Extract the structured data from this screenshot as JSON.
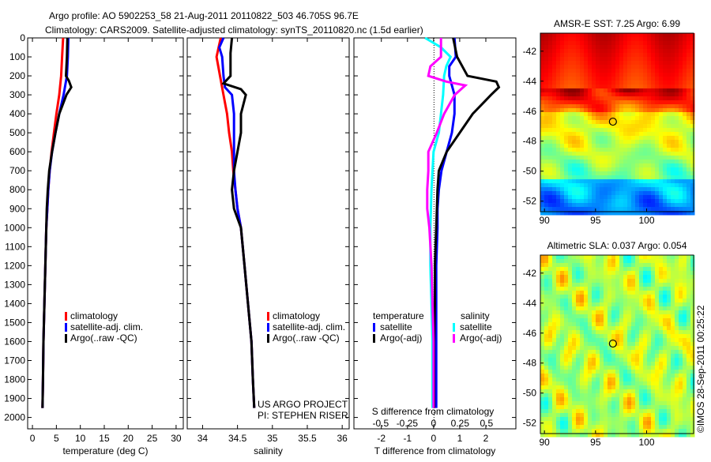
{
  "title_line1": "Argo profile: AO 5902253_58 21-Aug-2011 20110822_503 46.705S 96.7E",
  "title_line2": "Climatology: CARS2009. Satellite-adjusted climatology: synTS_20110820.nc (1.5d earlier)",
  "credit": "©IMOS 28-Sep-2011 00:25:22",
  "project_line1": "US ARGO PROJECT",
  "project_line2": "PI: STEPHEN RISER",
  "colors": {
    "climatology": "#ff0000",
    "satellite": "#0000ff",
    "argo": "#000000",
    "s_satellite": "#00ffff",
    "s_argo": "#ff00ff"
  },
  "chart_data": [
    {
      "id": "temperature",
      "type": "line",
      "xlabel": "temperature (deg C)",
      "xlim": [
        -1,
        31.5
      ],
      "xticks": [
        0,
        5,
        10,
        15,
        20,
        25,
        30
      ],
      "ylim": [
        0,
        2060
      ],
      "yticks": [
        0,
        100,
        200,
        300,
        400,
        500,
        600,
        700,
        800,
        900,
        1000,
        1100,
        1200,
        1300,
        1400,
        1500,
        1600,
        1700,
        1800,
        1900,
        2000
      ],
      "legend": [
        "climatology",
        "satellite-adj. clim.",
        "Argo(..raw -QC)"
      ],
      "series": [
        {
          "name": "climatology",
          "color": "#ff0000",
          "depth": [
            0,
            100,
            200,
            300,
            400,
            500,
            600,
            700,
            800,
            900,
            1000,
            1200,
            1400,
            1600,
            1800,
            1950
          ],
          "values": [
            6.4,
            6.2,
            6.0,
            5.6,
            5.0,
            4.5,
            4.0,
            3.6,
            3.3,
            3.1,
            2.9,
            2.7,
            2.5,
            2.3,
            2.2,
            2.1
          ]
        },
        {
          "name": "satellite-adj. clim.",
          "color": "#0000ff",
          "depth": [
            0,
            100,
            200,
            300,
            400,
            500,
            600,
            700,
            800,
            900,
            1000,
            1200,
            1400,
            1600,
            1800,
            1950
          ],
          "values": [
            7.5,
            7.4,
            7.2,
            6.5,
            5.6,
            4.8,
            4.1,
            3.6,
            3.3,
            3.1,
            2.9,
            2.7,
            2.5,
            2.3,
            2.2,
            2.1
          ]
        },
        {
          "name": "Argo(..raw -QC)",
          "color": "#000000",
          "depth": [
            0,
            100,
            200,
            225,
            260,
            300,
            400,
            500,
            600,
            700,
            800,
            900,
            1000,
            1200,
            1400,
            1600,
            1800,
            1950
          ],
          "values": [
            7.3,
            7.2,
            7.0,
            7.6,
            8.1,
            7.1,
            5.6,
            4.8,
            4.1,
            3.5,
            3.2,
            3.0,
            2.9,
            2.7,
            2.5,
            2.3,
            2.2,
            2.1
          ]
        }
      ]
    },
    {
      "id": "salinity",
      "type": "line",
      "xlabel": "salinity",
      "xlim": [
        33.78,
        36.1
      ],
      "xticks": [
        34,
        34.5,
        35,
        35.5,
        36
      ],
      "ylim": [
        0,
        2060
      ],
      "legend": [
        "climatology",
        "satellite-adj. clim.",
        "Argo(..raw -QC)"
      ],
      "series": [
        {
          "name": "climatology",
          "color": "#ff0000",
          "depth": [
            0,
            100,
            200,
            300,
            400,
            500,
            600,
            700,
            800,
            900,
            1000,
            1200,
            1400,
            1600,
            1800,
            1950
          ],
          "values": [
            34.26,
            34.2,
            34.25,
            34.3,
            34.35,
            34.38,
            34.42,
            34.44,
            34.47,
            34.5,
            34.55,
            34.6,
            34.65,
            34.7,
            34.72,
            34.74
          ]
        },
        {
          "name": "satellite-adj. clim.",
          "color": "#0000ff",
          "depth": [
            0,
            50,
            100,
            200,
            260,
            300,
            400,
            500,
            600,
            700,
            800,
            900,
            1000,
            1200,
            1400,
            1600,
            1800,
            1950
          ],
          "values": [
            34.3,
            34.24,
            34.28,
            34.3,
            34.32,
            34.42,
            34.45,
            34.45,
            34.45,
            34.45,
            34.47,
            34.5,
            34.55,
            34.6,
            34.65,
            34.7,
            34.72,
            34.74
          ]
        },
        {
          "name": "Argo(..raw -QC)",
          "color": "#000000",
          "depth": [
            0,
            80,
            200,
            240,
            270,
            300,
            400,
            500,
            600,
            700,
            800,
            900,
            1000,
            1200,
            1400,
            1600,
            1800,
            1950
          ],
          "values": [
            34.42,
            34.4,
            34.4,
            34.3,
            34.55,
            34.62,
            34.55,
            34.55,
            34.5,
            34.45,
            34.42,
            34.45,
            34.55,
            34.6,
            34.65,
            34.7,
            34.72,
            34.74
          ]
        }
      ]
    },
    {
      "id": "difference",
      "type": "line",
      "xlabel": "T difference from climatology",
      "xlabel_top": "S difference from climatology",
      "xlim": [
        -3.05,
        3.15
      ],
      "xticks": [
        -2,
        -1,
        0,
        1,
        2
      ],
      "s_xticks": [
        -0.5,
        -0.25,
        0,
        0.25,
        0.5
      ],
      "s_xtick_labels": [
        "-0.5",
        "-0.25",
        "0",
        "0.25",
        "0.5"
      ],
      "ylim": [
        0,
        2060
      ],
      "legend_temperature_title": "temperature",
      "legend_salinity_title": "salinity",
      "legend": [
        "satellite",
        "Argo(-adj)",
        "satellite",
        "Argo(-adj)"
      ],
      "series": [
        {
          "name": "T satellite",
          "color": "#0000ff",
          "unit": "T",
          "depth": [
            0,
            100,
            150,
            200,
            300,
            400,
            500,
            600,
            700,
            800,
            900,
            1000,
            1200,
            1400,
            1600,
            1800,
            1950
          ],
          "values": [
            0.8,
            0.85,
            0.6,
            0.6,
            0.8,
            0.8,
            0.7,
            0.5,
            0.3,
            0.2,
            0.15,
            0.15,
            0.1,
            0.1,
            0.1,
            0.1,
            0.1
          ]
        },
        {
          "name": "T Argo(-adj)",
          "color": "#000000",
          "unit": "T",
          "depth": [
            0,
            100,
            200,
            230,
            260,
            300,
            400,
            500,
            600,
            700,
            800,
            1000,
            1200,
            1400,
            1600,
            1800,
            1950
          ],
          "values": [
            0.75,
            0.9,
            1.3,
            2.4,
            2.5,
            2.2,
            1.5,
            1.0,
            0.5,
            0.2,
            0.15,
            0.1,
            0.05,
            0.05,
            0.02,
            0.02,
            0.02
          ]
        },
        {
          "name": "S satellite",
          "color": "#00ffff",
          "unit": "S",
          "depth": [
            0,
            50,
            100,
            150,
            200,
            300,
            400,
            500,
            600,
            700,
            800,
            1000,
            1200,
            1400,
            1600,
            1800,
            1950
          ],
          "values": [
            -0.08,
            0.07,
            0.16,
            0.12,
            0.1,
            0.09,
            0.07,
            0.05,
            0.0,
            -0.01,
            -0.02,
            -0.03,
            -0.03,
            -0.02,
            -0.01,
            -0.01,
            -0.01
          ]
        },
        {
          "name": "S Argo(-adj)",
          "color": "#ff00ff",
          "unit": "S",
          "depth": [
            0,
            100,
            150,
            200,
            230,
            250,
            300,
            400,
            500,
            600,
            700,
            800,
            900,
            1000,
            1200,
            1400,
            1600,
            1800,
            1950
          ],
          "values": [
            0.07,
            0.07,
            -0.03,
            -0.05,
            0.12,
            0.3,
            0.2,
            0.1,
            0.03,
            -0.05,
            -0.05,
            -0.06,
            -0.06,
            -0.04,
            -0.02,
            -0.01,
            0,
            0,
            0
          ]
        }
      ]
    },
    {
      "id": "sst_map",
      "type": "heatmap",
      "title": "AMSR-E SST: 7.25 Argo: 6.99",
      "xlim": [
        89.6,
        104.6
      ],
      "ylim": [
        -52.7,
        -40.8
      ],
      "xticks": [
        90,
        95,
        100
      ],
      "yticks": [
        -42,
        -44,
        -46,
        -48,
        -50,
        -52
      ],
      "marker": {
        "lon": 96.7,
        "lat": -46.7
      }
    },
    {
      "id": "sla_map",
      "type": "heatmap",
      "title": "Altimetric SLA: 0.037 Argo: 0.054",
      "xlim": [
        89.6,
        104.6
      ],
      "ylim": [
        -52.7,
        -40.8
      ],
      "xticks": [
        90,
        95,
        100
      ],
      "yticks": [
        -42,
        -44,
        -46,
        -48,
        -50,
        -52
      ],
      "marker": {
        "lon": 96.7,
        "lat": -46.7
      }
    }
  ]
}
